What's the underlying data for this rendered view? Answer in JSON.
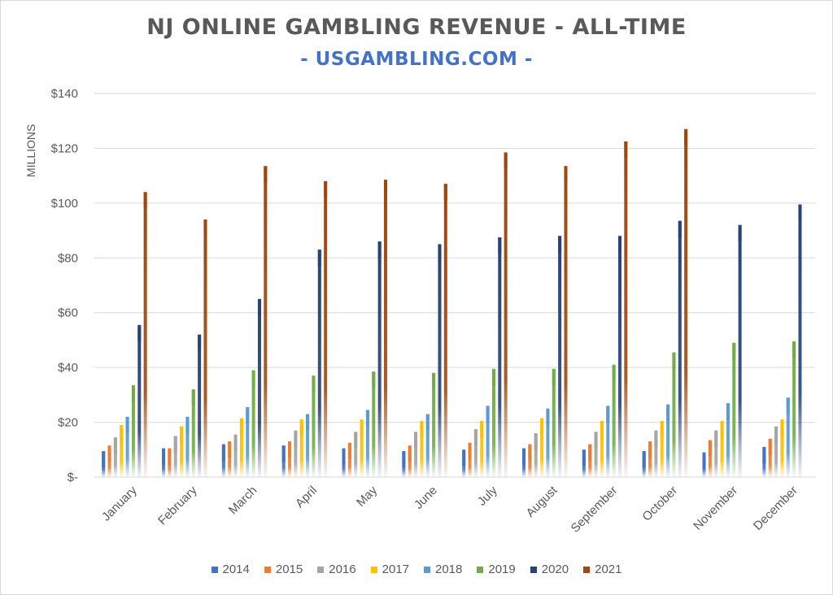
{
  "title": "NJ ONLINE GAMBLING REVENUE - ALL-TIME",
  "subtitle": "- USGAMBLING.COM -",
  "chart_data": {
    "type": "bar",
    "title": "NJ ONLINE GAMBLING REVENUE - ALL-TIME",
    "subtitle": "- USGAMBLING.COM -",
    "xlabel": "",
    "ylabel": "MILLIONS",
    "ylim": [
      0,
      140
    ],
    "yticks": [
      0,
      20,
      40,
      60,
      80,
      100,
      120,
      140
    ],
    "ytick_labels": [
      "$-",
      "$20",
      "$40",
      "$60",
      "$80",
      "$100",
      "$120",
      "$140"
    ],
    "grid": "horizontal",
    "legend_position": "bottom",
    "categories": [
      "January",
      "February",
      "March",
      "April",
      "May",
      "June",
      "July",
      "August",
      "September",
      "October",
      "November",
      "December"
    ],
    "series": [
      {
        "name": "2014",
        "color": "#4472c4",
        "values": [
          9.5,
          10.5,
          12,
          11.5,
          10.5,
          9.5,
          10,
          10.5,
          10,
          9.5,
          9,
          11
        ]
      },
      {
        "name": "2015",
        "color": "#ed7d31",
        "values": [
          11.5,
          10.5,
          13,
          13,
          12.5,
          11.5,
          12.5,
          12,
          12,
          13,
          13.5,
          14
        ]
      },
      {
        "name": "2016",
        "color": "#a5a5a5",
        "values": [
          14.5,
          15,
          15.5,
          17,
          16.5,
          16.5,
          17.5,
          16,
          16.5,
          17,
          17,
          18.5
        ]
      },
      {
        "name": "2017",
        "color": "#ffc000",
        "values": [
          19,
          18.5,
          21.5,
          21,
          21,
          20.5,
          20.5,
          21.5,
          20.5,
          20.5,
          20.5,
          21
        ]
      },
      {
        "name": "2018",
        "color": "#5b9bd5",
        "values": [
          22,
          22,
          25.5,
          23,
          24.5,
          23,
          26,
          25,
          26,
          26.5,
          27,
          29
        ]
      },
      {
        "name": "2019",
        "color": "#70ad47",
        "values": [
          33.5,
          32,
          39,
          37,
          38.5,
          38,
          39.5,
          39.5,
          41,
          45.5,
          49,
          49.5
        ]
      },
      {
        "name": "2020",
        "color": "#264478",
        "values": [
          55.5,
          52,
          65,
          83,
          86,
          85,
          87.5,
          88,
          88,
          93.5,
          92,
          99.5
        ]
      },
      {
        "name": "2021",
        "color": "#9e480e",
        "values": [
          104,
          94,
          113.5,
          108,
          108.5,
          107,
          118.5,
          113.5,
          122.5,
          127,
          null,
          null
        ]
      }
    ]
  }
}
